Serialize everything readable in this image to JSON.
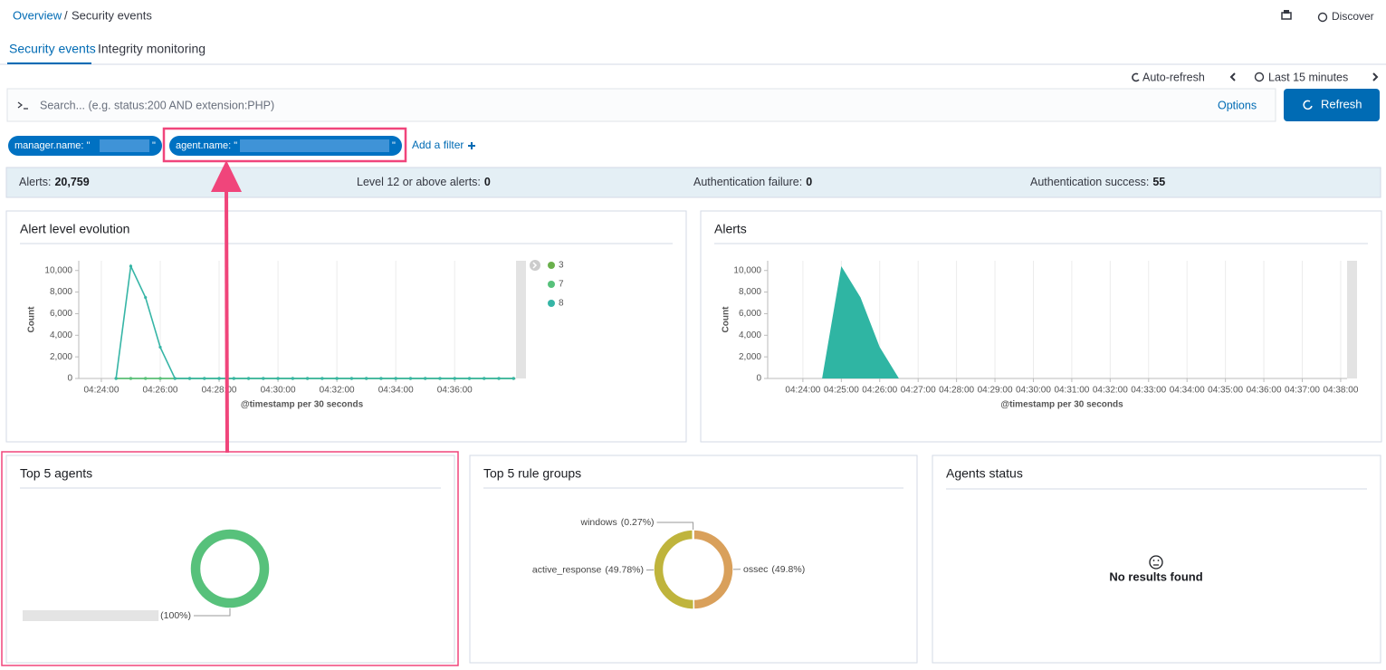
{
  "breadcrumb": {
    "parent": "Overview",
    "separator": "/",
    "current": "Security events"
  },
  "header_actions": {
    "discover": "Discover"
  },
  "tabs": [
    "Security events",
    "Integrity monitoring"
  ],
  "time_picker": {
    "auto_refresh": "Auto-refresh",
    "range": "Last 15 minutes"
  },
  "search": {
    "placeholder": "Search... (e.g. status:200 AND extension:PHP)",
    "options": "Options",
    "refresh": "Refresh"
  },
  "filters": [
    {
      "key": "manager.name: \"",
      "close": "\""
    },
    {
      "key": "agent.name: \"",
      "close": "\""
    }
  ],
  "add_filter": "Add a filter",
  "stats": [
    {
      "label": "Alerts:",
      "value": "20,759"
    },
    {
      "label": "Level 12 or above alerts:",
      "value": "0"
    },
    {
      "label": "Authentication failure:",
      "value": "0"
    },
    {
      "label": "Authentication success:",
      "value": "55"
    }
  ],
  "agents_status": {
    "title": "Agents status",
    "message": "No results found"
  },
  "chart_data": [
    {
      "type": "line",
      "title": "Alert level evolution",
      "y_label": "Count",
      "x_label": "@timestamp per 30 seconds",
      "x": [
        "04:24:30",
        "04:25:00",
        "04:25:30",
        "04:26:00",
        "04:26:30",
        "04:27:00",
        "04:27:30",
        "04:28:00",
        "04:28:30",
        "04:29:00",
        "04:29:30",
        "04:30:00",
        "04:30:30",
        "04:31:00",
        "04:31:30",
        "04:32:00",
        "04:32:30",
        "04:33:00",
        "04:33:30",
        "04:34:00",
        "04:34:30",
        "04:35:00",
        "04:35:30",
        "04:36:00",
        "04:36:30",
        "04:37:00",
        "04:37:30",
        "04:38:00"
      ],
      "xlim": [
        "04:23:14",
        "04:38:05"
      ],
      "xticks": [
        "04:24:00",
        "04:26:00",
        "04:28:00",
        "04:30:00",
        "04:32:00",
        "04:34:00",
        "04:36:00"
      ],
      "ylim": [
        0,
        10900
      ],
      "yticks": [
        0,
        {
          "value": 2000,
          "label": "2,000"
        },
        {
          "value": 4000,
          "label": "4,000"
        },
        {
          "value": 6000,
          "label": "6,000"
        },
        {
          "value": 8000,
          "label": "8,000"
        },
        {
          "value": 10000,
          "label": "10,000"
        }
      ],
      "grid": "x",
      "legend": "right",
      "series": [
        {
          "name": "3",
          "color": "#6ab04c",
          "values": [
            0,
            0,
            0,
            0,
            0,
            0,
            0,
            0,
            0,
            0,
            0,
            0,
            0,
            0,
            0,
            0,
            0,
            0,
            0,
            0,
            0,
            0,
            0,
            0,
            0,
            0,
            0,
            0
          ]
        },
        {
          "name": "7",
          "color": "#57c17b",
          "values": [
            0,
            0,
            0,
            0,
            0,
            0,
            0,
            0,
            0,
            0,
            0,
            0,
            0,
            0,
            0,
            0,
            0,
            0,
            0,
            0,
            0,
            0,
            0,
            0,
            0,
            0,
            0,
            0
          ]
        },
        {
          "name": "8",
          "color": "#36b5a6",
          "values": [
            0,
            10400,
            7500,
            2900,
            0,
            0,
            0,
            0,
            0,
            0,
            0,
            0,
            0,
            0,
            0,
            0,
            0,
            0,
            0,
            0,
            0,
            0,
            0,
            0,
            0,
            0,
            0,
            0
          ]
        }
      ]
    },
    {
      "type": "area",
      "title": "Alerts",
      "y_label": "Count",
      "x_label": "@timestamp per 30 seconds",
      "x": [
        "04:24:30",
        "04:25:00",
        "04:25:30",
        "04:26:00",
        "04:26:30",
        "04:27:00",
        "04:27:30",
        "04:28:00",
        "04:28:30",
        "04:29:00",
        "04:29:30",
        "04:30:00",
        "04:30:30",
        "04:31:00",
        "04:31:30",
        "04:32:00",
        "04:32:30",
        "04:33:00",
        "04:33:30",
        "04:34:00",
        "04:34:30",
        "04:35:00",
        "04:35:30",
        "04:36:00",
        "04:36:30",
        "04:37:00",
        "04:37:30",
        "04:38:00"
      ],
      "values": [
        0,
        10400,
        7500,
        2900,
        0,
        0,
        0,
        0,
        0,
        0,
        0,
        0,
        0,
        0,
        0,
        0,
        0,
        0,
        0,
        0,
        0,
        0,
        0,
        0,
        0,
        0,
        0,
        0
      ],
      "color": "#2fb5a3",
      "xlim": [
        "04:23:05",
        "04:38:10"
      ],
      "xticks": [
        "04:24:00",
        "04:25:00",
        "04:26:00",
        "04:27:00",
        "04:28:00",
        "04:29:00",
        "04:30:00",
        "04:31:00",
        "04:32:00",
        "04:33:00",
        "04:34:00",
        "04:35:00",
        "04:36:00",
        "04:37:00",
        "04:38:00"
      ],
      "ylim": [
        0,
        10900
      ],
      "yticks": [
        0,
        {
          "value": 2000,
          "label": "2,000"
        },
        {
          "value": 4000,
          "label": "4,000"
        },
        {
          "value": 6000,
          "label": "6,000"
        },
        {
          "value": 8000,
          "label": "8,000"
        },
        {
          "value": 10000,
          "label": "10,000"
        }
      ],
      "grid": "x"
    },
    {
      "type": "donut",
      "title": "Top 5 agents",
      "categories": [
        null
      ],
      "values": [
        100
      ],
      "value_labels": [
        "(100%)"
      ],
      "colors": [
        "#57c17b"
      ]
    },
    {
      "type": "donut",
      "title": "Top 5 rule groups",
      "categories": [
        "ossec",
        "active_response",
        "windows"
      ],
      "values": [
        49.8,
        49.78,
        0.27
      ],
      "value_labels": [
        "(49.8%)",
        "(49.78%)",
        "(0.27%)"
      ],
      "colors": [
        "#d9a05b",
        "#bfb43c",
        "#e7664c"
      ]
    }
  ]
}
